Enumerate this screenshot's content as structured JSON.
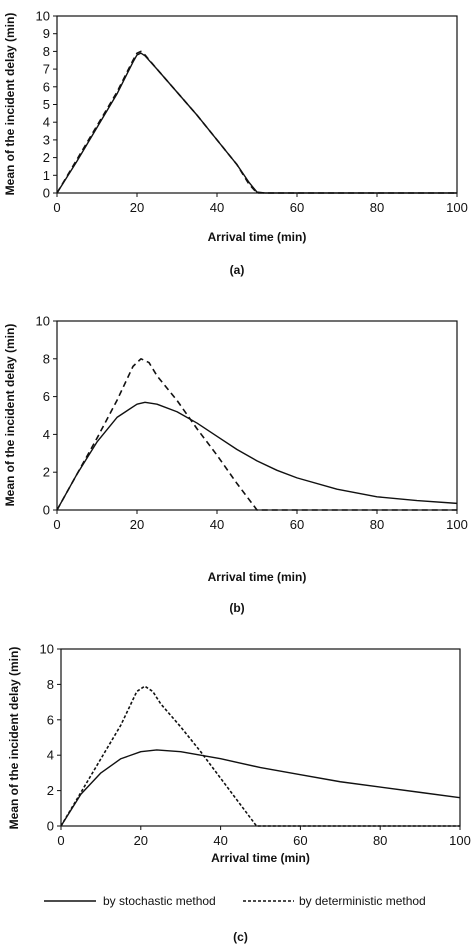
{
  "chart_data": [
    {
      "type": "line",
      "panel_label": "(a)",
      "xlabel": "Arrival time (min)",
      "ylabel": "Mean of the incident delay (min)",
      "xlim": [
        0,
        100
      ],
      "ylim": [
        0,
        10
      ],
      "xticks": [
        0,
        20,
        40,
        60,
        80,
        100
      ],
      "yticks": [
        0,
        1,
        2,
        3,
        4,
        5,
        6,
        7,
        8,
        9,
        10
      ],
      "grid": false,
      "series": [
        {
          "name": "by stochastic method",
          "style": "solid",
          "x": [
            0,
            5,
            10,
            15,
            19,
            20,
            21,
            22,
            25,
            30,
            35,
            40,
            45,
            48,
            50,
            52,
            55,
            60,
            70,
            80,
            90,
            100
          ],
          "y": [
            0,
            1.8,
            3.7,
            5.6,
            7.4,
            7.8,
            7.9,
            7.75,
            7.0,
            5.7,
            4.4,
            3.0,
            1.6,
            0.6,
            0.05,
            0.0,
            0.0,
            0.0,
            0.0,
            0.0,
            0.0,
            0.0
          ]
        },
        {
          "name": "by deterministic method",
          "style": "dashed",
          "x": [
            0,
            5,
            10,
            15,
            19,
            20,
            21,
            22,
            25,
            30,
            35,
            40,
            45,
            48,
            50,
            55,
            60,
            70,
            80,
            90,
            100
          ],
          "y": [
            0,
            1.9,
            3.8,
            5.7,
            7.5,
            7.9,
            8.0,
            7.8,
            7.0,
            5.7,
            4.4,
            3.0,
            1.6,
            0.5,
            0.0,
            0.0,
            0.0,
            0.0,
            0.0,
            0.0,
            0.0
          ]
        }
      ]
    },
    {
      "type": "line",
      "panel_label": "(b)",
      "xlabel": "Arrival time (min)",
      "ylabel": "Mean of the incident delay (min)",
      "xlim": [
        0,
        100
      ],
      "ylim": [
        0,
        10
      ],
      "xticks": [
        0,
        20,
        40,
        60,
        80,
        100
      ],
      "yticks": [
        0,
        2,
        4,
        6,
        8,
        10
      ],
      "grid": false,
      "series": [
        {
          "name": "by stochastic method",
          "style": "solid",
          "x": [
            0,
            5,
            10,
            15,
            20,
            22,
            25,
            30,
            35,
            40,
            45,
            50,
            55,
            60,
            70,
            80,
            90,
            100
          ],
          "y": [
            0,
            1.9,
            3.6,
            4.9,
            5.6,
            5.7,
            5.6,
            5.2,
            4.6,
            3.9,
            3.2,
            2.6,
            2.1,
            1.7,
            1.1,
            0.7,
            0.5,
            0.35
          ]
        },
        {
          "name": "by deterministic method",
          "style": "dashed",
          "x": [
            0,
            5,
            10,
            15,
            19,
            21,
            23,
            25,
            30,
            35,
            40,
            45,
            50,
            55,
            60,
            70,
            80,
            90,
            100
          ],
          "y": [
            0,
            1.9,
            3.8,
            5.8,
            7.6,
            8.0,
            7.8,
            7.1,
            5.8,
            4.3,
            2.9,
            1.4,
            0.0,
            0.0,
            0.0,
            0.0,
            0.0,
            0.0,
            0.0
          ]
        }
      ]
    },
    {
      "type": "line",
      "panel_label": "(c)",
      "xlabel": "Arrival time (min)",
      "ylabel": "Mean of the incident delay (min)",
      "xlim": [
        0,
        100
      ],
      "ylim": [
        0,
        10
      ],
      "xticks": [
        0,
        20,
        40,
        60,
        80,
        100
      ],
      "yticks": [
        0,
        2,
        4,
        6,
        8,
        10
      ],
      "grid": false,
      "legend_position": "bottom",
      "series": [
        {
          "name": "by stochastic method",
          "style": "solid",
          "x": [
            0,
            5,
            10,
            15,
            20,
            24,
            30,
            35,
            40,
            50,
            60,
            70,
            80,
            90,
            100
          ],
          "y": [
            0,
            1.8,
            3.0,
            3.8,
            4.2,
            4.3,
            4.2,
            4.0,
            3.8,
            3.3,
            2.9,
            2.5,
            2.2,
            1.9,
            1.6
          ]
        },
        {
          "name": "by deterministic method",
          "style": "dashed",
          "x": [
            0,
            5,
            10,
            15,
            19,
            21,
            23,
            25,
            30,
            35,
            40,
            45,
            49,
            55,
            60,
            70,
            80,
            90,
            100
          ],
          "y": [
            0,
            1.9,
            3.8,
            5.7,
            7.6,
            7.9,
            7.6,
            6.9,
            5.6,
            4.2,
            2.7,
            1.2,
            0.0,
            0.0,
            0.0,
            0.0,
            0.0,
            0.0,
            0.0
          ]
        }
      ]
    }
  ]
}
